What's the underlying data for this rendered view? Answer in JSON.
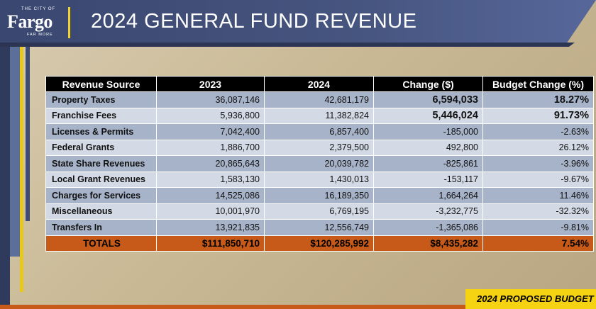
{
  "header": {
    "logo_top": "THE CITY OF",
    "logo_main": "Fargo",
    "logo_sub": "FAR MORE",
    "title": "2024 GENERAL FUND REVENUE"
  },
  "table": {
    "columns": [
      "Revenue Source",
      "2023",
      "2024",
      "Change ($)",
      "Budget Change (%)"
    ],
    "rows": [
      {
        "source": "Property Taxes",
        "y2023": "36,087,146",
        "y2024": "42,681,179",
        "change": "6,594,033",
        "pct": "18.27%"
      },
      {
        "source": "Franchise Fees",
        "y2023": "5,936,800",
        "y2024": "11,382,824",
        "change": "5,446,024",
        "pct": "91.73%"
      },
      {
        "source": "Licenses & Permits",
        "y2023": "7,042,400",
        "y2024": "6,857,400",
        "change": "-185,000",
        "pct": "-2.63%"
      },
      {
        "source": "Federal Grants",
        "y2023": "1,886,700",
        "y2024": "2,379,500",
        "change": "492,800",
        "pct": "26.12%"
      },
      {
        "source": "State Share Revenues",
        "y2023": "20,865,643",
        "y2024": "20,039,782",
        "change": "-825,861",
        "pct": "-3.96%"
      },
      {
        "source": "Local Grant Revenues",
        "y2023": "1,583,130",
        "y2024": "1,430,013",
        "change": "-153,117",
        "pct": "-9.67%"
      },
      {
        "source": "Charges for Services",
        "y2023": "14,525,086",
        "y2024": "16,189,350",
        "change": "1,664,264",
        "pct": "11.46%"
      },
      {
        "source": "Miscellaneous",
        "y2023": "10,001,970",
        "y2024": "6,769,195",
        "change": "-3,232,775",
        "pct": "-32.32%"
      },
      {
        "source": "Transfers In",
        "y2023": "13,921,835",
        "y2024": "12,556,749",
        "change": "-1,365,086",
        "pct": "-9.81%"
      }
    ],
    "totals": {
      "source": "TOTALS",
      "y2023": "$111,850,710",
      "y2024": "$120,285,992",
      "change": "$8,435,282",
      "pct": "7.54%"
    }
  },
  "footer": {
    "tag": "2024 PROPOSED BUDGET"
  },
  "colors": {
    "header": "#46557f",
    "accent_yellow": "#f6d312",
    "totals_orange": "#c75a18",
    "row_dark": "#a7b3c8",
    "row_light": "#d3d9e5"
  }
}
